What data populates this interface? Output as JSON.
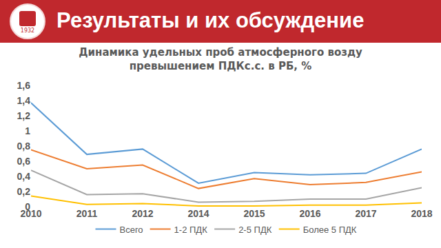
{
  "header": {
    "title": "Результаты и их обсуждение",
    "logo_text": "1932"
  },
  "chart_data": {
    "type": "line",
    "title": [
      "Динамика удельных проб атмосферного возду",
      "превышением ПДКс.с. в РБ, %"
    ],
    "categories": [
      "2010",
      "2011",
      "2012",
      "2014",
      "2015",
      "2016",
      "2017",
      "2018"
    ],
    "series": [
      {
        "name": "Всего",
        "color": "#5b9bd5",
        "values": [
          1.37,
          0.69,
          0.76,
          0.31,
          0.45,
          0.42,
          0.44,
          0.76
        ]
      },
      {
        "name": "1-2 ПДК",
        "color": "#ed7d31",
        "values": [
          0.75,
          0.5,
          0.55,
          0.24,
          0.37,
          0.29,
          0.32,
          0.46
        ]
      },
      {
        "name": "2-5 ПДК",
        "color": "#a5a5a5",
        "values": [
          0.48,
          0.16,
          0.17,
          0.06,
          0.07,
          0.1,
          0.1,
          0.25
        ]
      },
      {
        "name": "Более 5 ПДК",
        "color": "#ffc000",
        "values": [
          0.14,
          0.03,
          0.04,
          0.01,
          0.01,
          0.02,
          0.02,
          0.05
        ]
      }
    ],
    "ylim": [
      0,
      1.6
    ],
    "yticks": [
      0,
      {
        "value": 0.2,
        "label": "0,2"
      },
      {
        "value": 0.4,
        "label": "0,4"
      },
      {
        "value": 0.6,
        "label": "0,6"
      },
      {
        "value": 0.8,
        "label": "0,8"
      },
      1,
      {
        "value": 1.2,
        "label": "1,2"
      },
      {
        "value": 1.4,
        "label": "1,4"
      },
      {
        "value": 1.6,
        "label": "1,6"
      }
    ],
    "grid": false,
    "legend": "bottom"
  }
}
